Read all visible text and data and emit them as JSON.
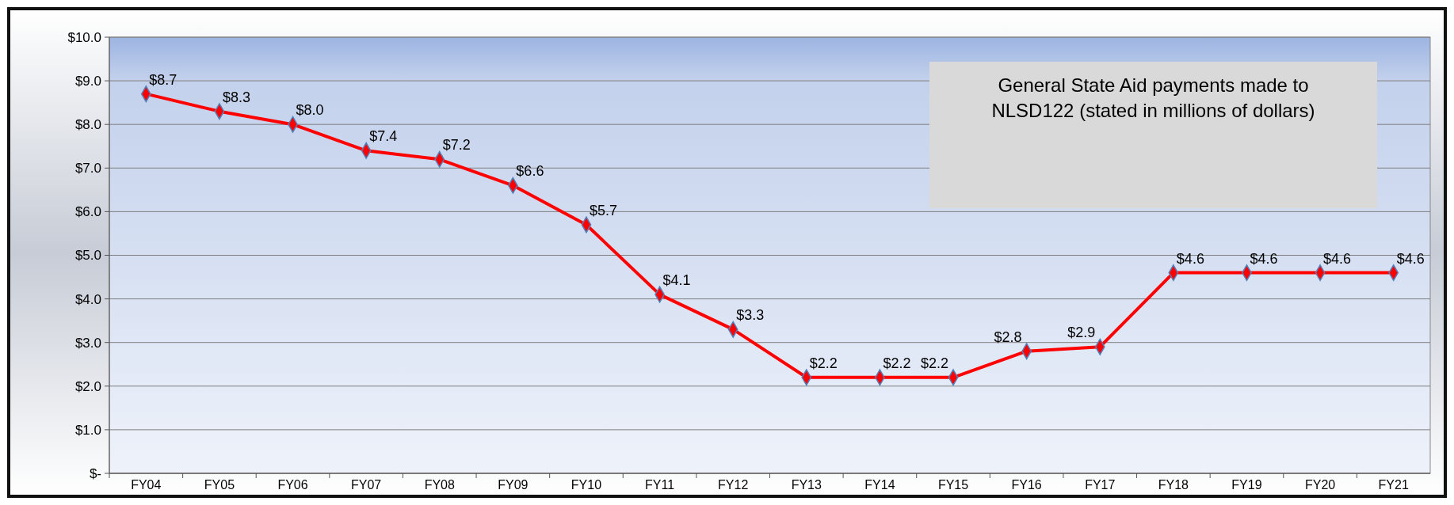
{
  "chart_data": {
    "type": "line",
    "title": "General State Aid payments made to NLSD122 (stated in millions of dollars)",
    "categories": [
      "FY04",
      "FY05",
      "FY06",
      "FY07",
      "FY08",
      "FY09",
      "FY10",
      "FY11",
      "FY12",
      "FY13",
      "FY14",
      "FY15",
      "FY16",
      "FY17",
      "FY18",
      "FY19",
      "FY20",
      "FY21"
    ],
    "series": [
      {
        "color": "#ff0000",
        "values": [
          8.7,
          8.3,
          8.0,
          7.4,
          7.2,
          6.6,
          5.7,
          4.1,
          3.3,
          2.2,
          2.2,
          2.2,
          2.8,
          2.9,
          4.6,
          4.6,
          4.6,
          4.6
        ],
        "value_labels": [
          "$8.7",
          "$8.3",
          "$8.0",
          "$7.4",
          "$7.2",
          "$6.6",
          "$5.7",
          "$4.1",
          "$3.3",
          "$2.2",
          "$2.2",
          "$2.2",
          "$2.8",
          "$2.9",
          "$4.6",
          "$4.6",
          "$4.6",
          "$4.6"
        ]
      }
    ],
    "ylim": [
      0,
      10
    ],
    "yticks": [
      {
        "value": 0,
        "label": "$-"
      },
      {
        "value": 1,
        "label": "$1.0"
      },
      {
        "value": 2,
        "label": "$2.0"
      },
      {
        "value": 3,
        "label": "$3.0"
      },
      {
        "value": 4,
        "label": "$4.0"
      },
      {
        "value": 5,
        "label": "$5.0"
      },
      {
        "value": 6,
        "label": "$6.0"
      },
      {
        "value": 7,
        "label": "$7.0"
      },
      {
        "value": 8,
        "label": "$8.0"
      },
      {
        "value": 9,
        "label": "$9.0"
      },
      {
        "value": 10,
        "label": "$10.0"
      }
    ],
    "grid": "y",
    "marker": "diamond",
    "line_style": "solid"
  }
}
